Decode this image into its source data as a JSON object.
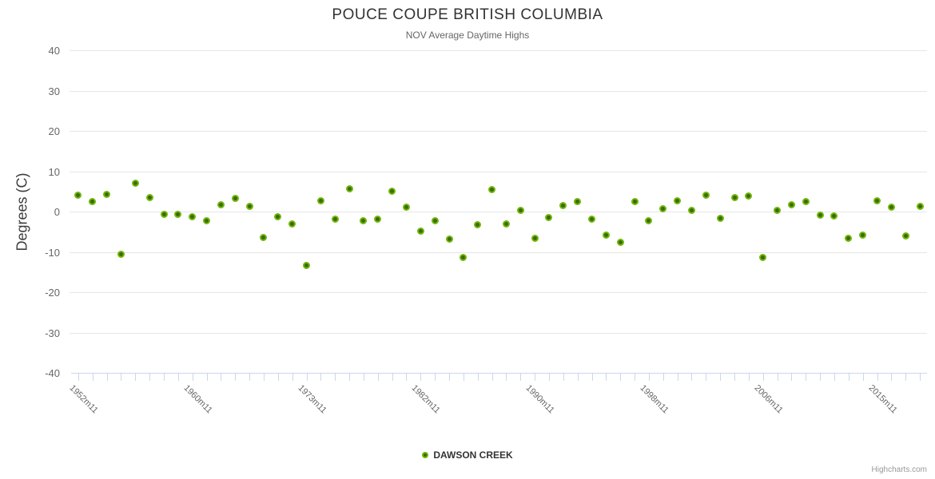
{
  "header": {
    "title": "POUCE COUPE BRITISH COLUMBIA",
    "subtitle": "NOV Average Daytime Highs"
  },
  "y_axis": {
    "title": "Degrees (C)",
    "tick_labels": [
      40,
      30,
      20,
      10,
      0,
      -10,
      -20,
      -30,
      -40
    ]
  },
  "x_axis": {
    "labels": [
      {
        "index": 0,
        "text": "1952m11"
      },
      {
        "index": 8,
        "text": "1960m11"
      },
      {
        "index": 16,
        "text": "1973m11"
      },
      {
        "index": 24,
        "text": "1982m11"
      },
      {
        "index": 32,
        "text": "1990m11"
      },
      {
        "index": 40,
        "text": "1998m11"
      },
      {
        "index": 48,
        "text": "2006m11"
      },
      {
        "index": 56,
        "text": "2015m11"
      }
    ]
  },
  "legend": {
    "series_name": "DAWSON CREEK"
  },
  "credit": "Highcharts.com",
  "colors": {
    "marker_fill": "#3a6c00",
    "marker_ring": "#72b60b",
    "gridline": "#e6e6e6",
    "axis": "#ccd6eb",
    "tick_label": "#666666",
    "title": "#333333"
  },
  "chart_data": {
    "type": "scatter",
    "title": "POUCE COUPE BRITISH COLUMBIA",
    "subtitle": "NOV Average Daytime Highs",
    "ylabel": "Degrees (C)",
    "ylim": [
      -40,
      40
    ],
    "y_tick_step": 10,
    "grid": "horizontal",
    "legend_position": "bottom-center",
    "n_points": 60,
    "x_tick_indices": [
      0,
      8,
      16,
      24,
      32,
      40,
      48,
      56
    ],
    "x_tick_labels": [
      "1952m11",
      "1960m11",
      "1973m11",
      "1982m11",
      "1990m11",
      "1998m11",
      "2006m11",
      "2015m11"
    ],
    "series": [
      {
        "name": "DAWSON CREEK",
        "values": [
          4.0,
          2.4,
          4.3,
          -10.6,
          7.1,
          3.4,
          -0.7,
          -0.7,
          -1.2,
          -2.3,
          1.7,
          3.2,
          1.3,
          -6.5,
          -1.2,
          -3.1,
          -13.3,
          2.6,
          -1.9,
          5.6,
          -2.3,
          -1.8,
          5.0,
          1.1,
          -4.8,
          -2.2,
          -6.9,
          -11.4,
          -3.3,
          5.4,
          -3.0,
          0.3,
          -6.6,
          -1.5,
          1.4,
          2.4,
          -1.8,
          -5.9,
          -7.6,
          2.4,
          -2.2,
          0.7,
          2.6,
          0.3,
          4.1,
          -1.6,
          3.5,
          3.9,
          -11.3,
          0.3,
          1.6,
          2.4,
          -0.9,
          -1.0,
          -6.7,
          -5.8,
          2.7,
          1.0,
          -6.0,
          1.2
        ]
      }
    ]
  }
}
